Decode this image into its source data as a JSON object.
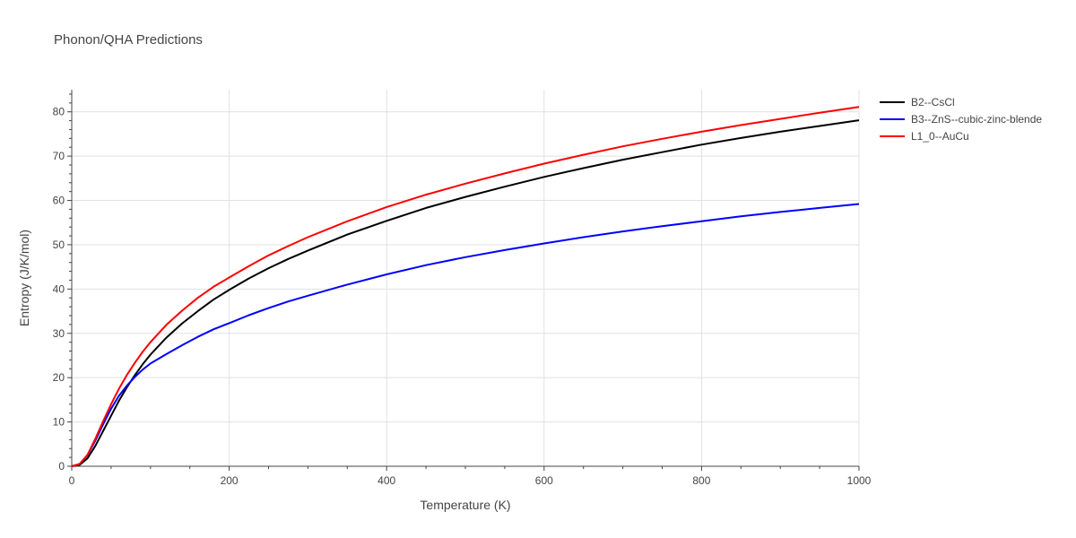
{
  "chart_data": {
    "type": "line",
    "title": "Phonon/QHA Predictions",
    "xlabel": "Temperature (K)",
    "ylabel": "Entropy (J/K/mol)",
    "xlim": [
      0,
      1000
    ],
    "ylim": [
      0,
      85
    ],
    "x_ticks": [
      0,
      200,
      400,
      600,
      800,
      1000
    ],
    "y_ticks": [
      0,
      10,
      20,
      30,
      40,
      50,
      60,
      70,
      80
    ],
    "grid": true,
    "legend_position": "top-right outside",
    "x": [
      0,
      10,
      20,
      30,
      40,
      50,
      60,
      70,
      80,
      90,
      100,
      120,
      140,
      160,
      180,
      200,
      225,
      250,
      275,
      300,
      350,
      400,
      450,
      500,
      550,
      600,
      650,
      700,
      750,
      800,
      850,
      900,
      950,
      1000
    ],
    "series": [
      {
        "name": "B2--CsCl",
        "color": "#000000",
        "values": [
          0,
          0.3,
          1.8,
          4.6,
          8.0,
          11.4,
          14.8,
          17.8,
          20.5,
          23.0,
          25.2,
          29.0,
          32.2,
          35.0,
          37.6,
          39.8,
          42.4,
          44.7,
          46.8,
          48.7,
          52.3,
          55.4,
          58.3,
          60.8,
          63.1,
          65.3,
          67.3,
          69.2,
          70.9,
          72.6,
          74.1,
          75.5,
          76.8,
          78.1
        ]
      },
      {
        "name": "B3--ZnS--cubic-zinc-blende",
        "color": "#0000ff",
        "values": [
          0,
          0.5,
          2.5,
          5.8,
          9.5,
          13.0,
          15.9,
          18.2,
          20.1,
          21.8,
          23.2,
          25.3,
          27.3,
          29.2,
          30.9,
          32.3,
          34.1,
          35.7,
          37.2,
          38.5,
          41.0,
          43.3,
          45.4,
          47.2,
          48.8,
          50.3,
          51.7,
          53.0,
          54.2,
          55.3,
          56.4,
          57.4,
          58.3,
          59.2
        ]
      },
      {
        "name": "L1_0--AuCu",
        "color": "#ff0000",
        "values": [
          0,
          0.5,
          2.6,
          6.2,
          10.2,
          14.0,
          17.5,
          20.6,
          23.3,
          25.8,
          28.0,
          31.9,
          35.1,
          38.0,
          40.5,
          42.6,
          45.2,
          47.6,
          49.7,
          51.7,
          55.3,
          58.5,
          61.3,
          63.8,
          66.1,
          68.3,
          70.3,
          72.2,
          73.9,
          75.5,
          77.0,
          78.4,
          79.8,
          81.1
        ]
      }
    ]
  }
}
